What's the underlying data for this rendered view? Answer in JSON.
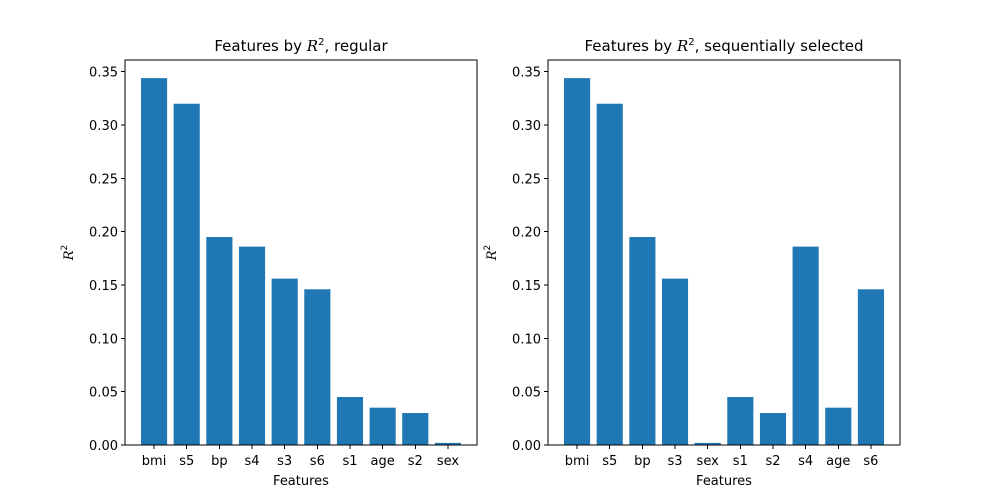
{
  "chart_data": [
    {
      "type": "bar",
      "title": {
        "prefix": "Features by ",
        "math": "R",
        "sup": "2",
        "suffix": ", regular"
      },
      "xlabel": "Features",
      "ylabel": {
        "math": "R",
        "sup": "2"
      },
      "categories": [
        "bmi",
        "s5",
        "bp",
        "s4",
        "s3",
        "s6",
        "s1",
        "age",
        "s2",
        "sex"
      ],
      "values": [
        0.344,
        0.32,
        0.195,
        0.186,
        0.156,
        0.146,
        0.045,
        0.035,
        0.03,
        0.002
      ],
      "ylim": [
        0,
        0.361
      ],
      "yticks": [
        "0.00",
        "0.05",
        "0.10",
        "0.15",
        "0.20",
        "0.25",
        "0.30",
        "0.35"
      ],
      "bar_color": "#1f77b4"
    },
    {
      "type": "bar",
      "title": {
        "prefix": "Features by ",
        "math": "R",
        "sup": "2",
        "suffix": ", sequentially selected"
      },
      "xlabel": "Features",
      "ylabel": {
        "math": "R",
        "sup": "2"
      },
      "categories": [
        "bmi",
        "s5",
        "bp",
        "s3",
        "sex",
        "s1",
        "s2",
        "s4",
        "age",
        "s6"
      ],
      "values": [
        0.344,
        0.32,
        0.195,
        0.156,
        0.002,
        0.045,
        0.03,
        0.186,
        0.035,
        0.146
      ],
      "ylim": [
        0,
        0.361
      ],
      "yticks": [
        "0.00",
        "0.05",
        "0.10",
        "0.15",
        "0.20",
        "0.25",
        "0.30",
        "0.35"
      ],
      "bar_color": "#1f77b4"
    }
  ]
}
